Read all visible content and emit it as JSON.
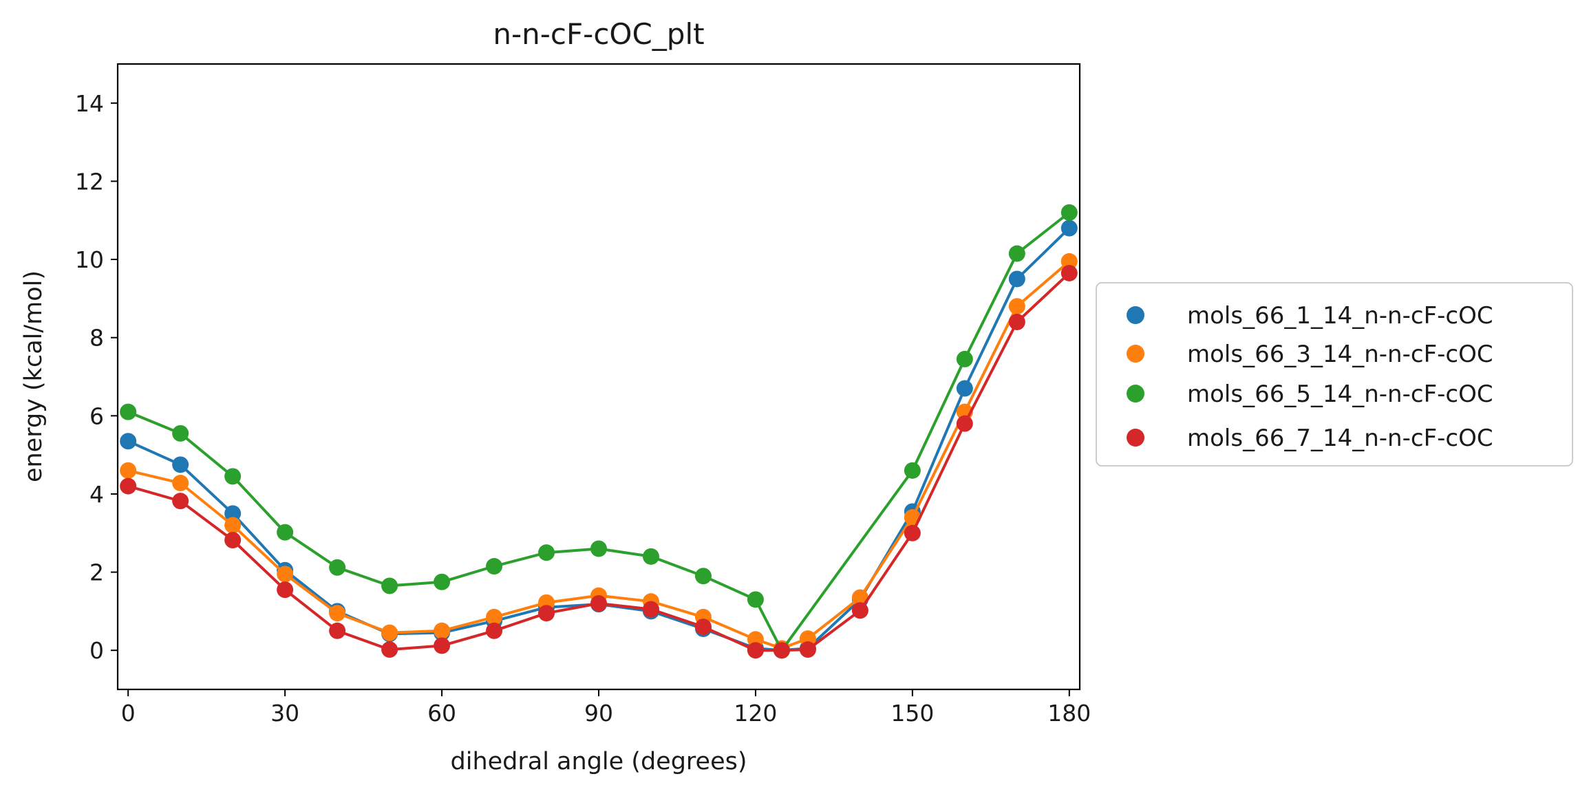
{
  "chart_data": {
    "type": "line",
    "title": "n-n-cF-cOC_plt",
    "xlabel": "dihedral angle (degrees)",
    "ylabel": "energy (kcal/mol)",
    "xlim": [
      -2,
      182
    ],
    "ylim": [
      -1,
      15
    ],
    "xticks": [
      0,
      30,
      60,
      90,
      120,
      150,
      180
    ],
    "yticks": [
      0,
      2,
      4,
      6,
      8,
      10,
      12,
      14
    ],
    "legend_position": "center-right outside",
    "series": [
      {
        "name": "mols_66_1_14_n-n-cF-cOC",
        "color": "#1f77b4",
        "x": [
          0,
          10,
          20,
          30,
          40,
          50,
          60,
          70,
          80,
          90,
          100,
          110,
          120,
          125,
          130,
          140,
          150,
          160,
          170,
          180
        ],
        "y": [
          5.35,
          4.75,
          3.5,
          2.05,
          1.0,
          0.42,
          0.45,
          0.75,
          1.1,
          1.18,
          1.0,
          0.55,
          0.05,
          0.0,
          0.05,
          1.3,
          3.55,
          6.7,
          9.5,
          10.8
        ]
      },
      {
        "name": "mols_66_3_14_n-n-cF-cOC",
        "color": "#ff7f0e",
        "x": [
          0,
          10,
          20,
          30,
          40,
          50,
          60,
          70,
          80,
          90,
          100,
          110,
          120,
          125,
          130,
          140,
          150,
          160,
          170,
          180
        ],
        "y": [
          4.6,
          4.28,
          3.2,
          1.95,
          0.95,
          0.45,
          0.5,
          0.85,
          1.22,
          1.4,
          1.25,
          0.85,
          0.28,
          0.05,
          0.3,
          1.35,
          3.4,
          6.1,
          8.8,
          9.95
        ]
      },
      {
        "name": "mols_66_5_14_n-n-cF-cOC",
        "color": "#2ca02c",
        "x": [
          0,
          10,
          20,
          30,
          40,
          50,
          60,
          70,
          80,
          90,
          100,
          110,
          120,
          125,
          150,
          160,
          170,
          180
        ],
        "y": [
          6.1,
          5.55,
          4.45,
          3.02,
          2.12,
          1.65,
          1.75,
          2.15,
          2.5,
          2.6,
          2.4,
          1.9,
          1.3,
          0.0,
          4.6,
          7.45,
          10.15,
          11.2
        ]
      },
      {
        "name": "mols_66_7_14_n-n-cF-cOC",
        "color": "#d62728",
        "x": [
          0,
          10,
          20,
          30,
          40,
          50,
          60,
          70,
          80,
          90,
          100,
          110,
          120,
          125,
          130,
          140,
          150,
          160,
          170,
          180
        ],
        "y": [
          4.2,
          3.82,
          2.82,
          1.55,
          0.5,
          0.02,
          0.12,
          0.5,
          0.95,
          1.2,
          1.05,
          0.6,
          0.0,
          0.0,
          0.02,
          1.02,
          3.0,
          5.8,
          8.4,
          9.65
        ]
      }
    ]
  }
}
